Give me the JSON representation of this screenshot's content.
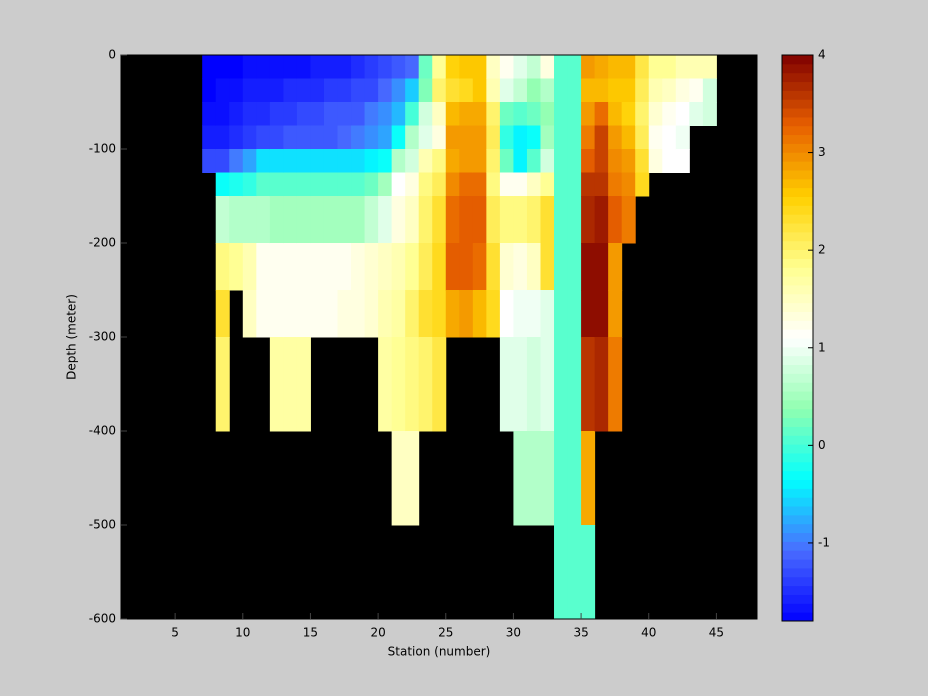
{
  "chart_data": {
    "type": "heatmap",
    "x_label": "Station (number)",
    "y_label": "Depth (meter)",
    "xlim": [
      1,
      48
    ],
    "ylim": [
      -600,
      0
    ],
    "xticks": [
      5,
      10,
      15,
      20,
      25,
      30,
      35,
      40,
      45
    ],
    "yticks": [
      0,
      -100,
      -200,
      -300,
      -400,
      -500,
      -600
    ],
    "x": [
      7,
      8,
      9,
      10,
      11,
      12,
      13,
      14,
      15,
      16,
      17,
      18,
      19,
      20,
      21,
      22,
      23,
      24,
      25,
      26,
      27,
      28,
      29,
      30,
      31,
      32,
      33,
      34,
      35,
      36,
      37,
      38,
      39,
      40,
      41,
      42,
      43,
      44,
      45
    ],
    "y": [
      0,
      -25,
      -50,
      -75,
      -100,
      -125,
      -150,
      -200,
      -250,
      -300,
      -400,
      -500,
      -600
    ],
    "z": [
      [
        -1.8,
        -1.8,
        -1.7,
        -1.6,
        -1.3,
        null,
        null,
        null,
        null,
        null,
        null,
        null
      ],
      [
        -1.8,
        -1.7,
        -1.7,
        -1.6,
        -1.3,
        -0.3,
        0.7,
        1.9,
        2.3,
        2.0,
        null,
        null
      ],
      [
        -1.8,
        -1.7,
        -1.6,
        -1.5,
        -1.0,
        -0.2,
        0.6,
        1.8,
        null,
        null,
        null,
        null
      ],
      [
        -1.7,
        -1.6,
        -1.5,
        -1.4,
        -0.8,
        -0.1,
        0.6,
        1.6,
        1.5,
        null,
        null,
        null
      ],
      [
        -1.7,
        -1.6,
        -1.5,
        -1.3,
        -0.5,
        0.1,
        0.6,
        1.2,
        1.2,
        null,
        null,
        null
      ],
      [
        -1.7,
        -1.6,
        -1.4,
        -1.3,
        -0.5,
        0.1,
        0.5,
        1.2,
        1.2,
        1.7,
        null,
        null
      ],
      [
        -1.7,
        -1.5,
        -1.4,
        -1.2,
        -0.5,
        0.1,
        0.5,
        1.2,
        1.2,
        1.7,
        null,
        null
      ],
      [
        -1.7,
        -1.5,
        -1.3,
        -1.2,
        -0.5,
        0.1,
        0.5,
        1.2,
        1.2,
        1.7,
        null,
        null
      ],
      [
        -1.6,
        -1.5,
        -1.3,
        -1.2,
        -0.5,
        0.1,
        0.5,
        1.2,
        1.2,
        null,
        null,
        null
      ],
      [
        -1.6,
        -1.4,
        -1.2,
        -1.2,
        -0.5,
        0.1,
        0.5,
        1.2,
        1.2,
        null,
        null,
        null
      ],
      [
        -1.6,
        -1.4,
        -1.2,
        -1.1,
        -0.5,
        0.1,
        0.5,
        1.2,
        1.3,
        null,
        null,
        null
      ],
      [
        -1.5,
        -1.3,
        -1.2,
        -1.0,
        -0.5,
        0.1,
        0.5,
        1.3,
        1.3,
        null,
        null,
        null
      ],
      [
        -1.4,
        -1.3,
        -1.0,
        -0.9,
        -0.4,
        0.2,
        0.7,
        1.4,
        1.4,
        null,
        null,
        null
      ],
      [
        -1.3,
        -1.1,
        -0.9,
        -0.8,
        -0.3,
        0.5,
        0.9,
        1.5,
        1.6,
        1.7,
        null,
        null
      ],
      [
        -1.2,
        -0.9,
        -0.7,
        -0.3,
        0.6,
        1.1,
        1.3,
        1.6,
        1.7,
        1.8,
        1.5,
        null
      ],
      [
        -1.1,
        -0.6,
        0.0,
        0.6,
        0.8,
        1.3,
        1.5,
        1.8,
        2.0,
        1.9,
        1.5,
        null
      ],
      [
        0.2,
        0.3,
        0.8,
        0.9,
        1.6,
        1.9,
        2.0,
        2.1,
        2.3,
        2.0,
        null,
        null
      ],
      [
        1.8,
        2.0,
        1.5,
        1.3,
        1.9,
        2.1,
        2.3,
        2.4,
        2.4,
        2.2,
        null,
        null
      ],
      [
        2.5,
        2.3,
        2.7,
        2.9,
        2.8,
        3.0,
        3.2,
        3.3,
        2.8,
        null,
        null,
        null
      ],
      [
        2.6,
        2.4,
        2.8,
        2.9,
        2.9,
        3.2,
        3.3,
        3.3,
        2.9,
        null,
        null,
        null
      ],
      [
        2.6,
        2.6,
        2.8,
        2.9,
        2.9,
        3.2,
        3.3,
        3.2,
        2.7,
        null,
        null,
        null
      ],
      [
        1.5,
        1.6,
        2.0,
        2.1,
        2.0,
        1.9,
        2.1,
        2.3,
        2.4,
        null,
        null,
        null
      ],
      [
        1.2,
        0.9,
        0.2,
        -0.1,
        0.2,
        1.2,
        1.9,
        1.4,
        1.1,
        0.9,
        null,
        null
      ],
      [
        0.9,
        0.7,
        0.1,
        -0.4,
        -0.4,
        1.2,
        1.9,
        1.3,
        1.0,
        0.9,
        0.6,
        null
      ],
      [
        0.7,
        0.4,
        0.2,
        -0.3,
        0.1,
        1.5,
        2.0,
        1.5,
        1.0,
        0.8,
        0.6,
        null
      ],
      [
        1.3,
        0.6,
        0.4,
        0.5,
        0.8,
        1.8,
        2.3,
        2.3,
        0.9,
        0.9,
        0.6,
        null
      ],
      [
        0.1,
        0.1,
        0.1,
        0.1,
        0.1,
        0.1,
        0.1,
        0.1,
        0.1,
        0.1,
        0.1,
        0.1
      ],
      [
        0.1,
        0.1,
        0.1,
        0.1,
        0.1,
        0.1,
        0.1,
        0.1,
        0.1,
        0.1,
        0.1,
        0.1
      ],
      [
        2.9,
        2.7,
        2.9,
        3.1,
        3.3,
        3.6,
        3.7,
        3.9,
        3.9,
        3.6,
        2.8,
        0.1
      ],
      [
        2.8,
        2.7,
        3.2,
        3.5,
        3.5,
        3.6,
        3.8,
        3.9,
        3.9,
        3.7,
        null,
        null
      ],
      [
        2.7,
        2.6,
        2.7,
        2.9,
        3.0,
        3.1,
        3.3,
        2.9,
        2.9,
        3.1,
        null,
        null
      ],
      [
        2.7,
        2.6,
        2.5,
        2.7,
        2.9,
        3.0,
        3.1,
        null,
        null,
        null,
        null,
        null
      ],
      [
        2.2,
        2.1,
        2.0,
        2.1,
        2.3,
        2.4,
        null,
        null,
        null,
        null,
        null,
        null
      ],
      [
        1.8,
        1.6,
        1.4,
        1.2,
        1.3,
        null,
        null,
        null,
        null,
        null,
        null,
        null
      ],
      [
        1.8,
        1.5,
        1.2,
        1.1,
        1.1,
        null,
        null,
        null,
        null,
        null,
        null,
        null
      ],
      [
        1.6,
        1.3,
        1.1,
        1.0,
        1.1,
        null,
        null,
        null,
        null,
        null,
        null,
        null
      ],
      [
        1.6,
        1.2,
        0.9,
        null,
        null,
        null,
        null,
        null,
        null,
        null,
        null,
        null
      ],
      [
        1.6,
        0.8,
        0.8,
        null,
        null,
        null,
        null,
        null,
        null,
        null,
        null,
        null
      ]
    ],
    "background_color": "#000000",
    "colormap": [
      "#0000ff",
      "#4a6cff",
      "#00ffff",
      "#90ffb0",
      "#ffffff",
      "#ffff90",
      "#ffd000",
      "#e86000",
      "#800000"
    ],
    "clim": [
      -1.8,
      4
    ],
    "cticks": [
      -1,
      0,
      1,
      2,
      3,
      4
    ]
  }
}
